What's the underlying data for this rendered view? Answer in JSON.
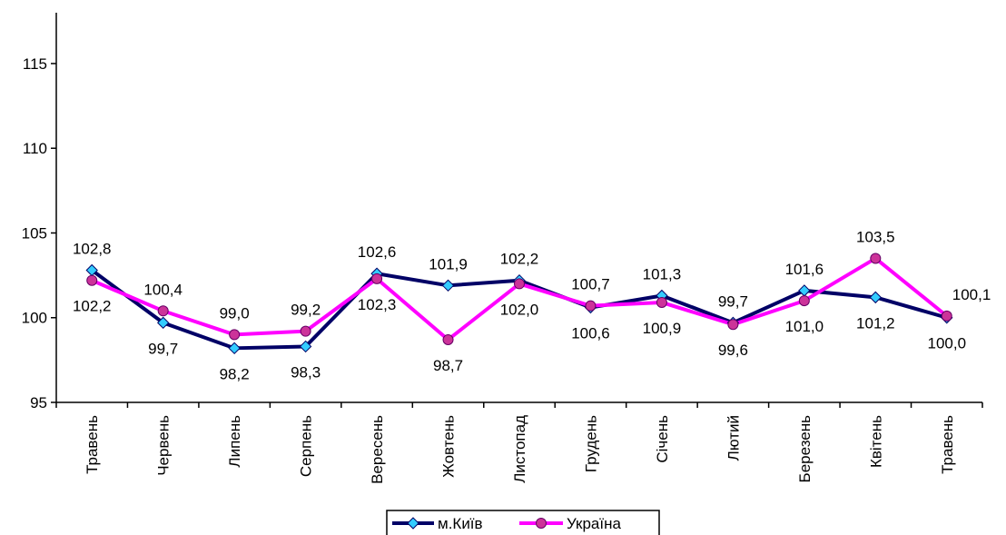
{
  "chart_data": {
    "type": "line",
    "categories": [
      "Травень",
      "Червень",
      "Липень",
      "Серпень",
      "Вересень",
      "Жовтень",
      "Листопад",
      "Грудень",
      "Січень",
      "Лютий",
      "Березень",
      "Квітень",
      "Травень"
    ],
    "ylim": [
      95,
      118
    ],
    "yticks": [
      "95",
      "100",
      "105",
      "110",
      "115"
    ],
    "grid": false,
    "legend_position": "bottom",
    "series": [
      {
        "name": "м.Київ",
        "color": "#000066",
        "marker_color": "#33CCFF",
        "marker": "diamond",
        "values": [
          102.8,
          99.7,
          98.2,
          98.3,
          102.6,
          101.9,
          102.2,
          100.6,
          101.3,
          99.7,
          101.6,
          101.2,
          100.0
        ],
        "labels": [
          "102,8",
          "99,7",
          "98,2",
          "98,3",
          "102,6",
          "101,9",
          "102,2",
          "100,6",
          "101,3",
          "99,7",
          "101,6",
          "101,2",
          "100,0"
        ]
      },
      {
        "name": "Україна",
        "color": "#FF00FF",
        "marker_color": "#CC3399",
        "marker": "circle",
        "values": [
          102.2,
          100.4,
          99.0,
          99.2,
          102.3,
          98.7,
          102.0,
          100.7,
          100.9,
          99.6,
          101.0,
          103.5,
          100.1
        ],
        "labels": [
          "102,2",
          "100,4",
          "99,0",
          "99,2",
          "102,3",
          "98,7",
          "102,0",
          "100,7",
          "100,9",
          "99,6",
          "101,0",
          "103,5",
          "100,1"
        ]
      }
    ]
  }
}
